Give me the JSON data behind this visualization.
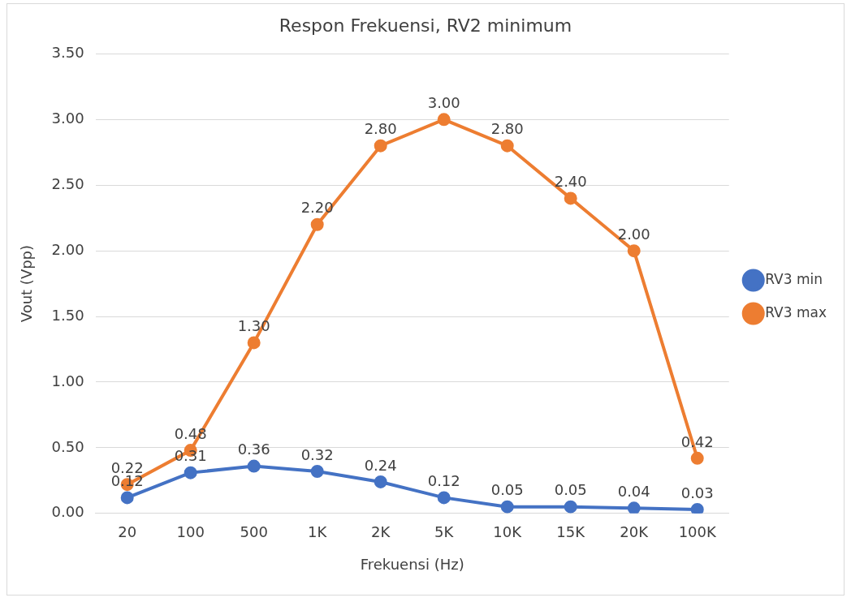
{
  "chart_data": {
    "type": "line",
    "title": "Respon Frekuensi, RV2 minimum",
    "xlabel": "Frekuensi (Hz)",
    "ylabel": "Vout (Vpp)",
    "categories": [
      "20",
      "100",
      "500",
      "1K",
      "2K",
      "5K",
      "10K",
      "15K",
      "20K",
      "100K"
    ],
    "series": [
      {
        "name": "RV3 min",
        "color": "#4472c4",
        "values": [
          0.12,
          0.31,
          0.36,
          0.32,
          0.24,
          0.12,
          0.05,
          0.05,
          0.04,
          0.03
        ],
        "value_labels": [
          "0.12",
          "0.31",
          "0.36",
          "0.32",
          "0.24",
          "0.12",
          "0.05",
          "0.05",
          "0.04",
          "0.03"
        ]
      },
      {
        "name": "RV3 max",
        "color": "#ed7d31",
        "values": [
          0.22,
          0.48,
          1.3,
          2.2,
          2.8,
          3.0,
          2.8,
          2.4,
          2.0,
          0.42
        ],
        "value_labels": [
          "0.22",
          "0.48",
          "1.30",
          "2.20",
          "2.80",
          "3.00",
          "2.80",
          "2.40",
          "2.00",
          "0.42"
        ]
      }
    ],
    "ylim": [
      0,
      3.5
    ],
    "yticks": [
      {
        "value": 0,
        "label": "0.00"
      },
      {
        "value": 0.5,
        "label": "0.50"
      },
      {
        "value": 1,
        "label": "1.00"
      },
      {
        "value": 1.5,
        "label": "1.50"
      },
      {
        "value": 2,
        "label": "2.00"
      },
      {
        "value": 2.5,
        "label": "2.50"
      },
      {
        "value": 3,
        "label": "3.00"
      },
      {
        "value": 3.5,
        "label": "3.50"
      }
    ],
    "grid": "y",
    "legend": "right",
    "marker": "circle",
    "line_style": "solid"
  }
}
